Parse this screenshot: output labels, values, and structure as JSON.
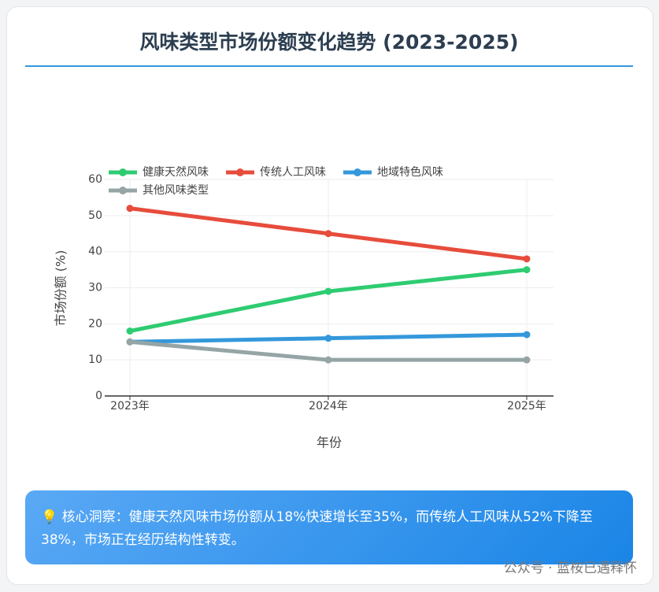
{
  "chart_data": {
    "type": "line",
    "title": "风味类型市场份额变化趋势 (2023-2025)",
    "y_label": "市场份额 (%)",
    "x_label": "年份",
    "categories": [
      "2023年",
      "2024年",
      "2025年"
    ],
    "series": [
      {
        "name": "健康天然风味",
        "color": "#2ecc71",
        "values": [
          18,
          29,
          35
        ]
      },
      {
        "name": "传统人工风味",
        "color": "#e74c3c",
        "values": [
          52,
          45,
          38
        ]
      },
      {
        "name": "地域特色风味",
        "color": "#3498db",
        "values": [
          15,
          16,
          17
        ]
      },
      {
        "name": "其他风味类型",
        "color": "#95a5a6",
        "values": [
          15,
          10,
          10
        ]
      }
    ],
    "ylim": [
      0,
      60
    ],
    "yticks": [
      0,
      10,
      20,
      30,
      40,
      50,
      60
    ],
    "grid": true,
    "legend": "top-left"
  },
  "insight": "💡 核心洞察：健康天然风味市场份额从18%快速增长至35%，而传统人工风味从52%下降至38%，市场正在经历结构性转变。",
  "watermark": "公众号 · 蓝桉已遇释怀"
}
